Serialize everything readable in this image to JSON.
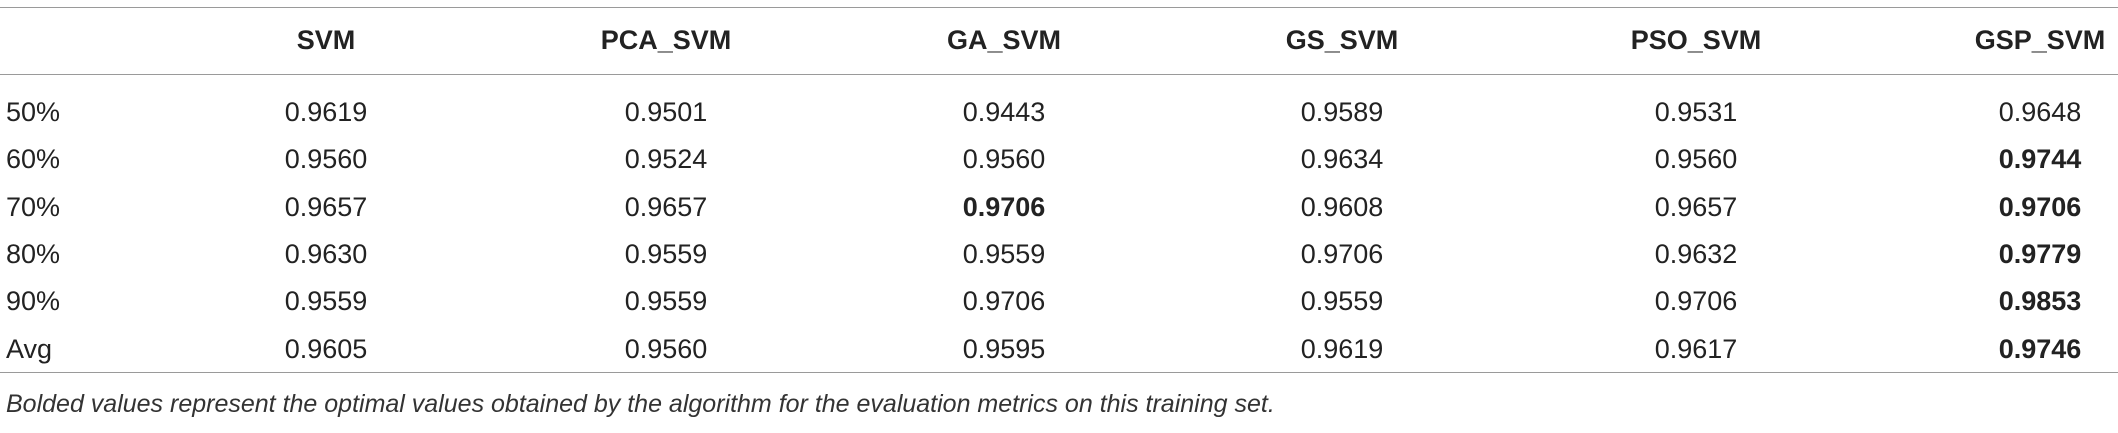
{
  "table": {
    "header": [
      "",
      "SVM",
      "PCA_SVM",
      "GA_SVM",
      "GS_SVM",
      "PSO_SVM",
      "GSP_SVM"
    ],
    "rows": [
      [
        "50%",
        "0.9619",
        "0.9501",
        "0.9443",
        "0.9589",
        "0.9531",
        "0.9648"
      ],
      [
        "60%",
        "0.9560",
        "0.9524",
        "0.9560",
        "0.9634",
        "0.9560",
        "0.9744"
      ],
      [
        "70%",
        "0.9657",
        "0.9657",
        "0.9706",
        "0.9608",
        "0.9657",
        "0.9706"
      ],
      [
        "80%",
        "0.9630",
        "0.9559",
        "0.9559",
        "0.9706",
        "0.9632",
        "0.9779"
      ],
      [
        "90%",
        "0.9559",
        "0.9559",
        "0.9706",
        "0.9559",
        "0.9706",
        "0.9853"
      ],
      [
        "Avg",
        "0.9605",
        "0.9560",
        "0.9595",
        "0.9619",
        "0.9617",
        "0.9746"
      ]
    ],
    "bold_cells": [
      [
        1,
        6
      ],
      [
        2,
        3
      ],
      [
        2,
        6
      ],
      [
        3,
        6
      ],
      [
        4,
        6
      ],
      [
        5,
        6
      ]
    ],
    "footnote": "Bolded values represent the optimal values obtained by the algorithm for the evaluation metrics on this training set."
  }
}
